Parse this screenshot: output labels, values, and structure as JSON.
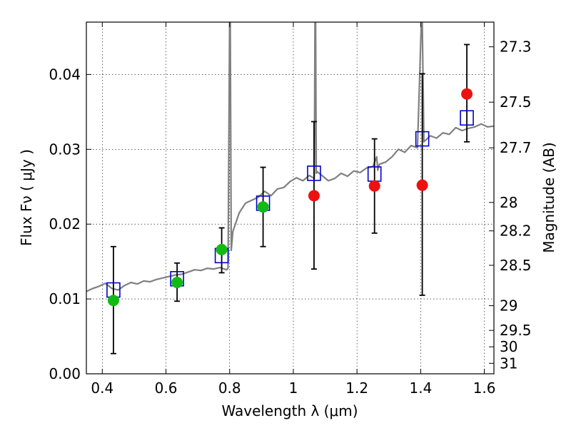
{
  "chart_data": {
    "type": "scatter",
    "xlabel": "Wavelength  λ (μm)",
    "ylabel": "Flux  Fν  ( μJy )",
    "ylabel_right": "Magnitude (AB)",
    "xlim": [
      0.35,
      1.63
    ],
    "ylim": [
      0.0,
      0.047
    ],
    "grid": true,
    "x_ticks": [
      0.4,
      0.6,
      0.8,
      1.0,
      1.2,
      1.4,
      1.6
    ],
    "x_tick_labels": [
      "0.4",
      "0.6",
      "0.8",
      "1",
      "1.2",
      "1.4",
      "1.6"
    ],
    "y_ticks": [
      0.0,
      0.01,
      0.02,
      0.03,
      0.04
    ],
    "y_tick_labels": [
      "0.00",
      "0.01",
      "0.02",
      "0.03",
      "0.04"
    ],
    "mag_ticks": [
      {
        "label": "27.3",
        "flux": 0.0437
      },
      {
        "label": "27.5",
        "flux": 0.0363
      },
      {
        "label": "27.7",
        "flux": 0.0302
      },
      {
        "label": "28",
        "flux": 0.0229
      },
      {
        "label": "28.2",
        "flux": 0.0191
      },
      {
        "label": "28.5",
        "flux": 0.0145
      },
      {
        "label": "29",
        "flux": 0.0091
      },
      {
        "label": "29.5",
        "flux": 0.0058
      },
      {
        "label": "30",
        "flux": 0.0036
      },
      {
        "label": "31",
        "flux": 0.0014
      }
    ],
    "series": [
      {
        "kind": "spectrum",
        "color": "#808080",
        "x": [
          0.35,
          0.37,
          0.39,
          0.41,
          0.43,
          0.45,
          0.47,
          0.49,
          0.51,
          0.53,
          0.55,
          0.57,
          0.59,
          0.61,
          0.63,
          0.65,
          0.67,
          0.69,
          0.71,
          0.73,
          0.75,
          0.77,
          0.79,
          0.795,
          0.8,
          0.802,
          0.805,
          0.81,
          0.83,
          0.85,
          0.87,
          0.89,
          0.91,
          0.93,
          0.95,
          0.97,
          0.99,
          1.01,
          1.03,
          1.05,
          1.066,
          1.068,
          1.07,
          1.072,
          1.075,
          1.09,
          1.11,
          1.13,
          1.15,
          1.17,
          1.19,
          1.21,
          1.23,
          1.25,
          1.262,
          1.265,
          1.27,
          1.29,
          1.31,
          1.33,
          1.35,
          1.37,
          1.39,
          1.402,
          1.405,
          1.41,
          1.43,
          1.45,
          1.47,
          1.49,
          1.51,
          1.53,
          1.55,
          1.57,
          1.59,
          1.61,
          1.63
        ],
        "y": [
          0.011,
          0.0114,
          0.0117,
          0.0121,
          0.0114,
          0.0112,
          0.0118,
          0.0122,
          0.012,
          0.0124,
          0.0123,
          0.0126,
          0.0128,
          0.013,
          0.0132,
          0.0133,
          0.0136,
          0.0139,
          0.0138,
          0.0141,
          0.014,
          0.0142,
          0.0139,
          0.0141,
          0.047,
          0.047,
          0.0165,
          0.019,
          0.0215,
          0.0228,
          0.0232,
          0.0236,
          0.0244,
          0.0238,
          0.0247,
          0.0249,
          0.0257,
          0.0262,
          0.0258,
          0.0265,
          0.0261,
          0.047,
          0.047,
          0.0268,
          0.027,
          0.0265,
          0.0258,
          0.0261,
          0.0268,
          0.0264,
          0.0271,
          0.0269,
          0.0275,
          0.0277,
          0.029,
          0.0272,
          0.028,
          0.0283,
          0.029,
          0.03,
          0.0296,
          0.0305,
          0.0302,
          0.047,
          0.047,
          0.031,
          0.0318,
          0.0315,
          0.0322,
          0.032,
          0.0329,
          0.0325,
          0.0328,
          0.033,
          0.0334,
          0.033,
          0.0331
        ]
      },
      {
        "kind": "errorbar",
        "color": "#000000",
        "x": [
          0.435,
          0.635,
          0.775,
          0.905,
          1.065,
          1.255,
          1.405,
          1.545
        ],
        "y_low": [
          0.0027,
          0.0097,
          0.0135,
          0.017,
          0.014,
          0.0188,
          0.0105,
          0.031
        ],
        "y_high": [
          0.017,
          0.0148,
          0.0195,
          0.0276,
          0.0337,
          0.0314,
          0.0401,
          0.044
        ]
      },
      {
        "kind": "model",
        "marker": "square",
        "color": "#0000cc",
        "x": [
          0.435,
          0.635,
          0.775,
          0.905,
          1.065,
          1.255,
          1.405,
          1.545
        ],
        "y": [
          0.0112,
          0.0127,
          0.0158,
          0.0228,
          0.0268,
          0.0267,
          0.0314,
          0.0342
        ]
      },
      {
        "kind": "detection",
        "marker": "circle",
        "color": "#11bb11",
        "x": [
          0.435,
          0.635,
          0.775,
          0.905
        ],
        "y": [
          0.0098,
          0.0122,
          0.0166,
          0.0223
        ]
      },
      {
        "kind": "measurement",
        "marker": "circle",
        "color": "#ee1111",
        "x": [
          1.065,
          1.255,
          1.405,
          1.545
        ],
        "y": [
          0.0238,
          0.0251,
          0.0252,
          0.0374
        ]
      }
    ]
  }
}
